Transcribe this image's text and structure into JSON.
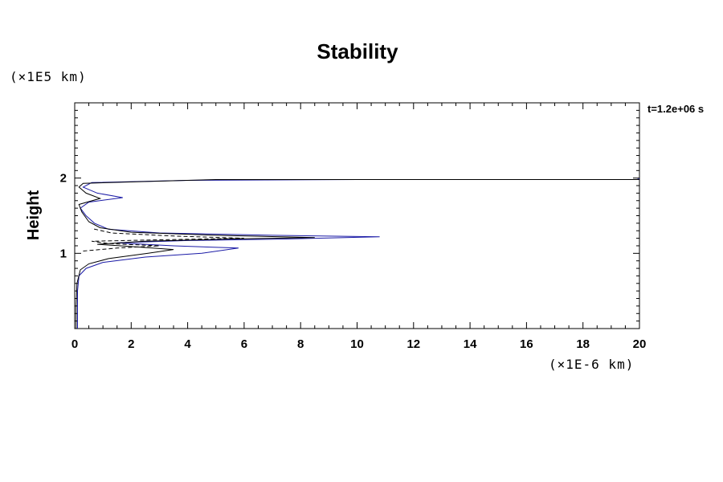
{
  "chart_data": {
    "type": "line",
    "title": "Stability",
    "ylabel": "Height",
    "y_unit_label": "(×1E5 km)",
    "x_unit_label": "(×1E-6 km)",
    "time_annotation": "t=1.2e+06 s",
    "xlim": [
      0,
      20
    ],
    "ylim": [
      0,
      3
    ],
    "x_ticks": [
      0,
      2,
      4,
      6,
      8,
      10,
      12,
      14,
      16,
      18,
      20
    ],
    "y_ticks": [
      1,
      2
    ],
    "grid": false,
    "series": [
      {
        "color": "#1a1aa6",
        "points": [
          [
            0.1,
            0.0
          ],
          [
            0.1,
            0.2
          ],
          [
            0.1,
            0.5
          ],
          [
            0.15,
            0.7
          ],
          [
            0.4,
            0.8
          ],
          [
            1.0,
            0.88
          ],
          [
            2.5,
            0.95
          ],
          [
            4.5,
            1.0
          ],
          [
            5.8,
            1.07
          ],
          [
            3.5,
            1.1
          ],
          [
            1.5,
            1.14
          ],
          [
            4.0,
            1.17
          ],
          [
            7.5,
            1.19
          ],
          [
            10.8,
            1.22
          ],
          [
            7.0,
            1.24
          ],
          [
            3.0,
            1.27
          ],
          [
            1.2,
            1.32
          ],
          [
            0.7,
            1.4
          ],
          [
            0.4,
            1.5
          ],
          [
            0.2,
            1.6
          ],
          [
            0.5,
            1.68
          ],
          [
            1.7,
            1.74
          ],
          [
            0.8,
            1.8
          ],
          [
            0.3,
            1.88
          ],
          [
            0.6,
            1.94
          ],
          [
            4.0,
            1.97
          ],
          [
            10.0,
            1.98
          ],
          [
            15.0,
            1.98
          ],
          [
            19.9,
            1.98
          ],
          [
            20.0,
            1.99
          ]
        ]
      },
      {
        "color": "#000000",
        "points": [
          [
            0.05,
            0.0
          ],
          [
            0.05,
            0.3
          ],
          [
            0.08,
            0.6
          ],
          [
            0.2,
            0.78
          ],
          [
            0.5,
            0.86
          ],
          [
            1.2,
            0.93
          ],
          [
            2.6,
            1.0
          ],
          [
            3.5,
            1.05
          ],
          [
            2.0,
            1.09
          ],
          [
            0.8,
            1.12
          ],
          [
            2.5,
            1.16
          ],
          [
            5.5,
            1.19
          ],
          [
            8.5,
            1.21
          ],
          [
            5.0,
            1.24
          ],
          [
            2.0,
            1.28
          ],
          [
            0.9,
            1.34
          ],
          [
            0.5,
            1.42
          ],
          [
            0.25,
            1.55
          ],
          [
            0.15,
            1.65
          ],
          [
            0.9,
            1.73
          ],
          [
            0.4,
            1.8
          ],
          [
            0.15,
            1.88
          ],
          [
            0.3,
            1.93
          ],
          [
            5.0,
            1.98
          ],
          [
            20.0,
            1.98
          ]
        ]
      },
      {
        "color": "#000000",
        "dashed": true,
        "points": [
          [
            0.3,
            1.03
          ],
          [
            1.5,
            1.07
          ],
          [
            3.0,
            1.1
          ],
          [
            1.2,
            1.13
          ],
          [
            0.6,
            1.16
          ],
          [
            3.0,
            1.18
          ],
          [
            6.0,
            1.2
          ],
          [
            3.5,
            1.23
          ],
          [
            1.3,
            1.27
          ],
          [
            0.6,
            1.33
          ]
        ]
      }
    ]
  }
}
